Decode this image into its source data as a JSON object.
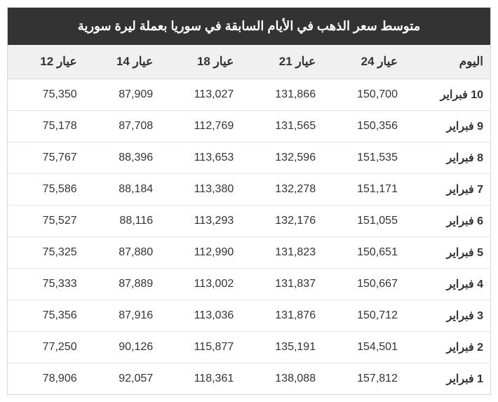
{
  "title": "متوسط سعر الذهب في الأيام السابقة في سوريا بعملة ليرة سورية",
  "columns": [
    "اليوم",
    "عيار 24",
    "عيار 21",
    "عيار 18",
    "عيار 14",
    "عيار 12"
  ],
  "rows": [
    {
      "day": "10 فبراير",
      "k24": "150,700",
      "k21": "131,866",
      "k18": "113,027",
      "k14": "87,909",
      "k12": "75,350"
    },
    {
      "day": "9 فبراير",
      "k24": "150,356",
      "k21": "131,565",
      "k18": "112,769",
      "k14": "87,708",
      "k12": "75,178"
    },
    {
      "day": "8 فبراير",
      "k24": "151,535",
      "k21": "132,596",
      "k18": "113,653",
      "k14": "88,396",
      "k12": "75,767"
    },
    {
      "day": "7 فبراير",
      "k24": "151,171",
      "k21": "132,278",
      "k18": "113,380",
      "k14": "88,184",
      "k12": "75,586"
    },
    {
      "day": "6 فبراير",
      "k24": "151,055",
      "k21": "132,176",
      "k18": "113,293",
      "k14": "88,116",
      "k12": "75,527"
    },
    {
      "day": "5 فبراير",
      "k24": "150,651",
      "k21": "131,823",
      "k18": "112,990",
      "k14": "87,880",
      "k12": "75,325"
    },
    {
      "day": "4 فبراير",
      "k24": "150,667",
      "k21": "131,837",
      "k18": "113,002",
      "k14": "87,889",
      "k12": "75,333"
    },
    {
      "day": "3 فبراير",
      "k24": "150,712",
      "k21": "131,876",
      "k18": "113,036",
      "k14": "87,916",
      "k12": "75,356"
    },
    {
      "day": "2 فبراير",
      "k24": "154,501",
      "k21": "135,191",
      "k18": "115,877",
      "k14": "90,126",
      "k12": "77,250"
    },
    {
      "day": "1 فبراير",
      "k24": "157,812",
      "k21": "138,088",
      "k18": "118,361",
      "k14": "92,057",
      "k12": "78,906"
    }
  ],
  "style": {
    "title_bg": "#333333",
    "title_color": "#ffffff",
    "title_fontsize": 18,
    "header_bg": "#f0f0f0",
    "header_color": "#333333",
    "header_fontsize": 17,
    "cell_fontsize": 16,
    "cell_color": "#333333",
    "border_color": "#d8d8d8",
    "row_border_color": "#e5e5e5",
    "background": "#ffffff"
  }
}
